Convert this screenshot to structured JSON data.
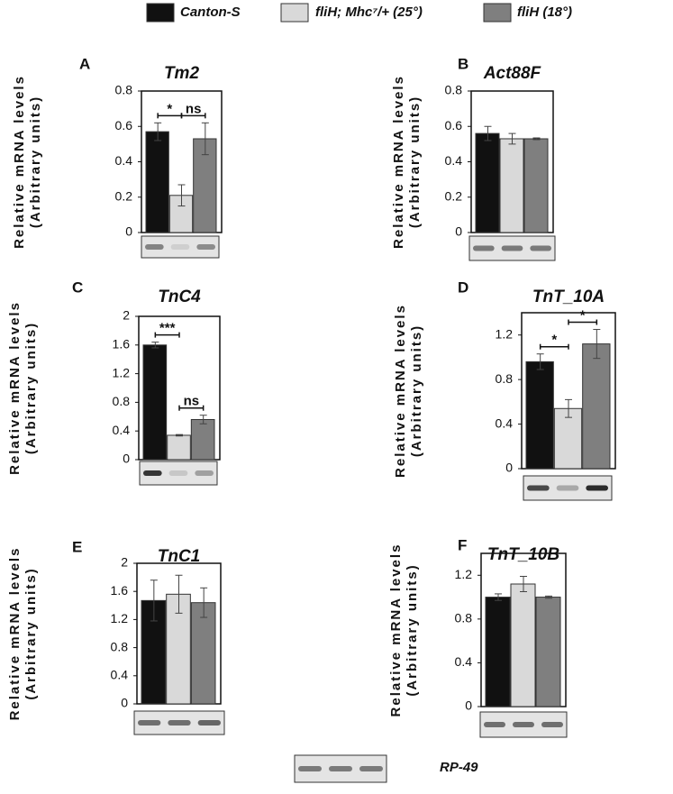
{
  "legend": [
    {
      "name": "Canton-S",
      "color": "#111111"
    },
    {
      "name": "fliH; Mhc⁷/+ (25°)",
      "color": "#d9d9d9"
    },
    {
      "name": "fliH (18°)",
      "color": "#7f7f7f"
    }
  ],
  "reference_label": "RP-49",
  "chart_data": [
    {
      "type": "bar",
      "panel": "A",
      "title": "Tm2",
      "ylabel": "Relative mRNA levels",
      "ylabel2": "(Arbitrary units)",
      "values": [
        0.57,
        0.21,
        0.53
      ],
      "errors": [
        0.05,
        0.06,
        0.09
      ],
      "annotations": [
        "*",
        "ns"
      ],
      "ylim": [
        0,
        0.8
      ],
      "yticks": [
        0,
        0.2,
        0.4,
        0.6,
        0.8
      ]
    },
    {
      "type": "bar",
      "panel": "B",
      "title": "Act88F",
      "ylabel": "Relative mRNA levels",
      "ylabel2": "(Arbitrary units)",
      "values": [
        0.56,
        0.53,
        0.53
      ],
      "errors": [
        0.04,
        0.03,
        0.005
      ],
      "annotations": [],
      "ylim": [
        0,
        0.8
      ],
      "yticks": [
        0,
        0.2,
        0.4,
        0.6,
        0.8
      ]
    },
    {
      "type": "bar",
      "panel": "C",
      "title": "TnC4",
      "ylabel": "Relative mRNA levels",
      "ylabel2": "(Arbitrary units)",
      "values": [
        1.6,
        0.34,
        0.56
      ],
      "errors": [
        0.04,
        0.01,
        0.06
      ],
      "annotations": [
        "***",
        "ns"
      ],
      "ylim": [
        0,
        2
      ],
      "yticks": [
        0,
        0.4,
        0.8,
        1.2,
        1.6,
        2
      ]
    },
    {
      "type": "bar",
      "panel": "D",
      "title": "TnT_10A",
      "ylabel": "Relative mRNA levels",
      "ylabel2": "(Arbitrary units)",
      "values": [
        0.96,
        0.54,
        1.12
      ],
      "errors": [
        0.07,
        0.08,
        0.13
      ],
      "annotations": [
        "*",
        "*"
      ],
      "ylim": [
        0,
        1.4
      ],
      "yticks": [
        0,
        0.4,
        0.8,
        1.2
      ]
    },
    {
      "type": "bar",
      "panel": "E",
      "title": "TnC1",
      "ylabel": "Relative mRNA levels",
      "ylabel2": "(Arbitrary units)",
      "values": [
        1.47,
        1.56,
        1.44
      ],
      "errors": [
        0.29,
        0.27,
        0.21
      ],
      "annotations": [],
      "ylim": [
        0,
        2
      ],
      "yticks": [
        0,
        0.4,
        0.8,
        1.2,
        1.6,
        2
      ]
    },
    {
      "type": "bar",
      "panel": "F",
      "title": "TnT_10B",
      "ylabel": "Relative mRNA levels",
      "ylabel2": "(Arbitrary units)",
      "values": [
        1.0,
        1.12,
        1.0
      ],
      "errors": [
        0.03,
        0.07,
        0.01
      ],
      "annotations": [],
      "ylim": [
        0,
        1.4
      ],
      "yticks": [
        0,
        0.4,
        0.8,
        1.2
      ]
    }
  ]
}
